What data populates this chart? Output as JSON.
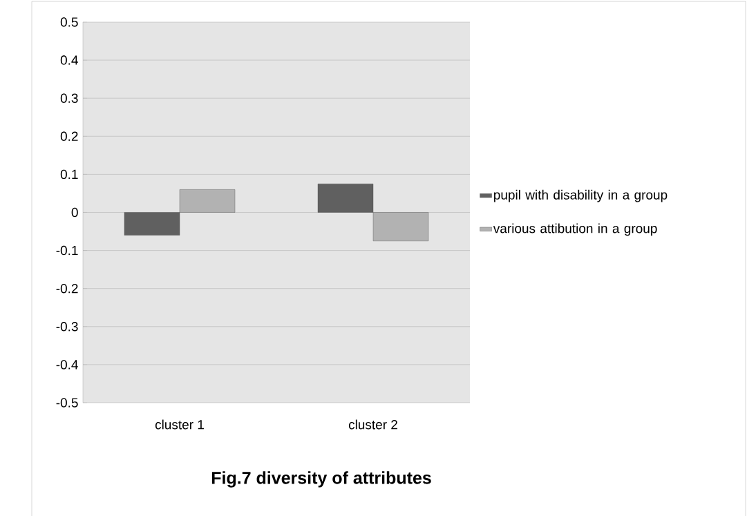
{
  "chart_data": {
    "type": "bar",
    "title": "Fig.7 diversity of attributes",
    "categories": [
      "cluster 1",
      "cluster 2"
    ],
    "series": [
      {
        "name": "pupil with disability in a group",
        "color": "#606060",
        "values": [
          -0.06,
          0.075
        ]
      },
      {
        "name": "various attibution in a group",
        "color": "#b2b2b2",
        "values": [
          0.06,
          -0.075
        ]
      }
    ],
    "ylim": [
      -0.5,
      0.5
    ],
    "yticks": [
      -0.5,
      -0.4,
      -0.3,
      -0.2,
      -0.1,
      0,
      0.1,
      0.2,
      0.3,
      0.4,
      0.5
    ],
    "grid": "y",
    "legend": "right"
  }
}
